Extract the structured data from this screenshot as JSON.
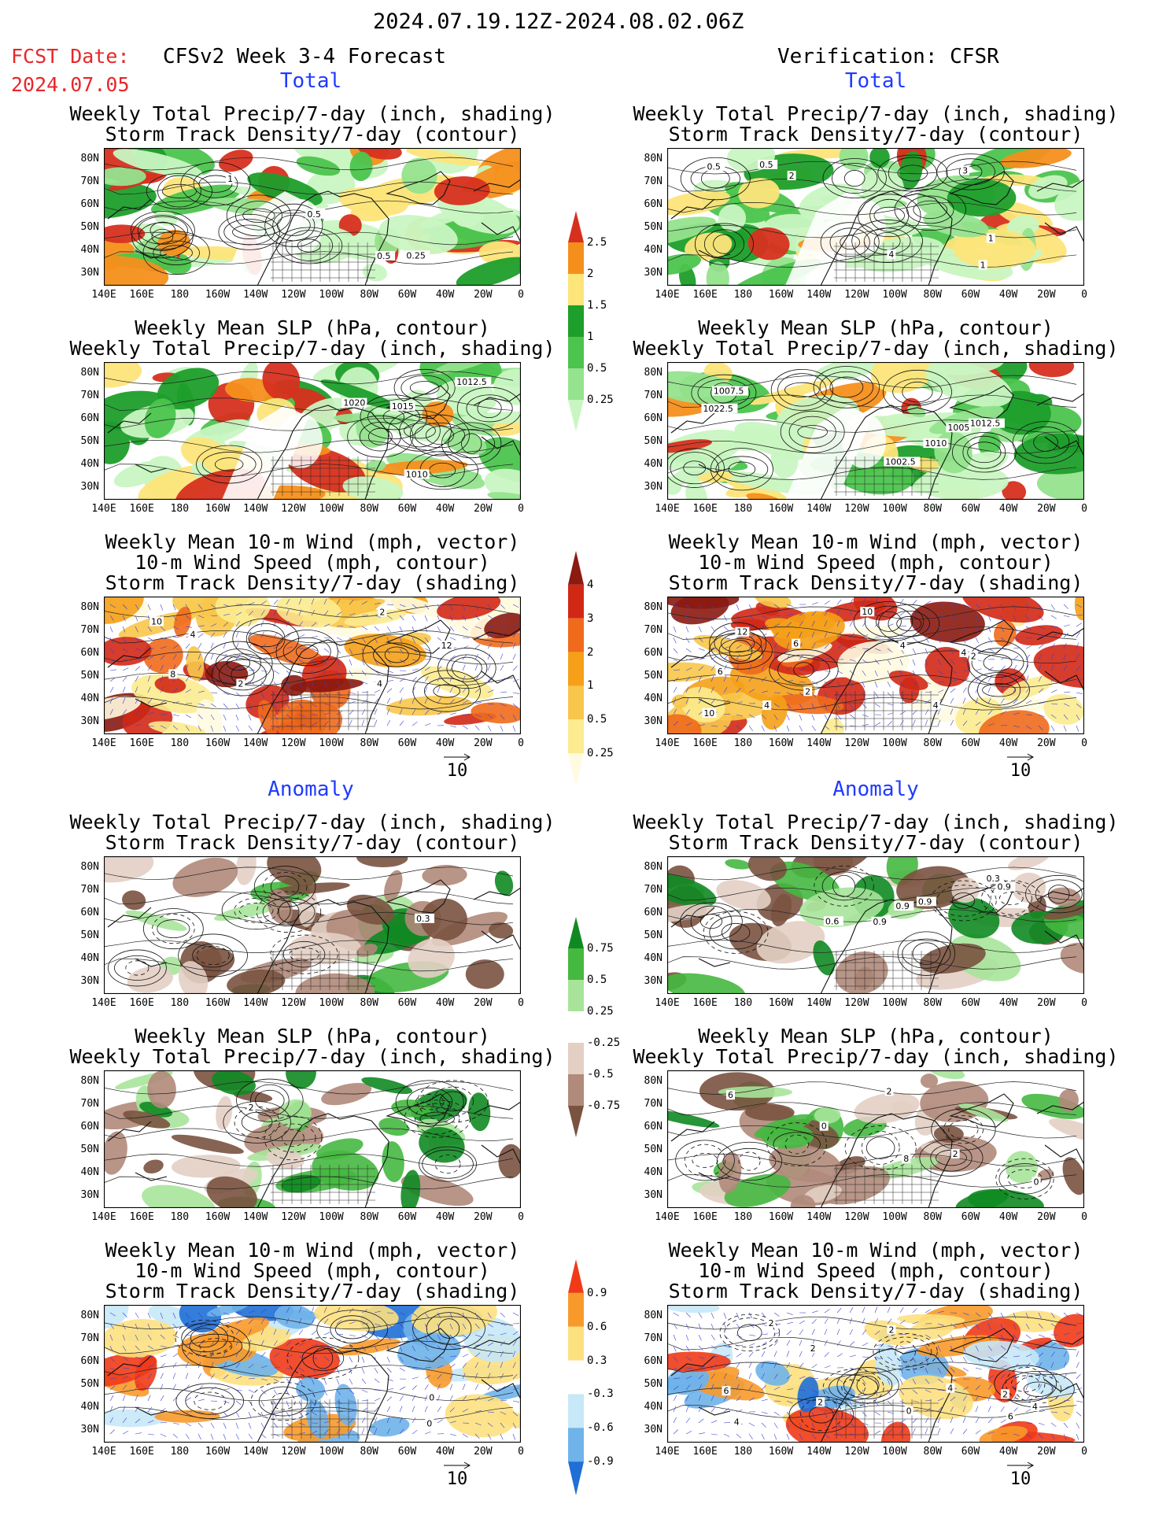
{
  "header": {
    "period": "2024.07.19.12Z-2024.08.02.06Z",
    "fcst_label": "FCST Date:",
    "fcst_date": "2024.07.05",
    "model_title": "CFSv2 Week 3-4 Forecast",
    "verification_title": "Verification: CFSR"
  },
  "sections": {
    "total": "Total",
    "anomaly": "Anomaly"
  },
  "titles": {
    "precip_storm": [
      "Weekly Total Precip/7-day (inch, shading)",
      "Storm Track Density/7-day (contour)"
    ],
    "slp_precip": [
      "Weekly Mean SLP (hPa, contour)",
      "Weekly Total Precip/7-day (inch, shading)"
    ],
    "wind_storm": [
      "Weekly Mean 10-m Wind (mph, vector)",
      "10-m Wind Speed (mph, contour)",
      "Storm Track Density/7-day (shading)"
    ]
  },
  "axes": {
    "lat_labels": [
      "80N",
      "70N",
      "60N",
      "50N",
      "40N",
      "30N"
    ],
    "lon_labels": [
      "140E",
      "160E",
      "180",
      "160W",
      "140W",
      "120W",
      "100W",
      "80W",
      "60W",
      "40W",
      "20W",
      "0"
    ]
  },
  "reference_vector": "10",
  "colorbars": {
    "precip_total": {
      "labels": [
        "2.5",
        "2",
        "1.5",
        "1",
        "0.5",
        "0.25"
      ],
      "colors": [
        "#d7301f",
        "#f58f1c",
        "#fde57a",
        "#1e9e2b",
        "#4cc44e",
        "#95e38e",
        "#c9f5c2"
      ]
    },
    "storm_total": {
      "labels": [
        "4",
        "3",
        "2",
        "1",
        "0.5",
        "0.25"
      ],
      "colors": [
        "#8b1a10",
        "#d12816",
        "#f06a1c",
        "#f5a018",
        "#f8c64a",
        "#fceb8f",
        "#fffbe0"
      ]
    },
    "precip_anom": {
      "labels": [
        "0.75",
        "0.5",
        "0.25",
        "-0.25",
        "-0.5",
        "-0.75"
      ],
      "colors": [
        "#0f8a22",
        "#45b840",
        "#a7e49a",
        "#ffffff",
        "#e3cfc4",
        "#b08a7a",
        "#7a5240"
      ]
    },
    "storm_anom": {
      "labels": [
        "0.9",
        "0.6",
        "0.3",
        "-0.3",
        "-0.6",
        "-0.9"
      ],
      "colors": [
        "#f03a18",
        "#f89a2a",
        "#fde080",
        "#ffffff",
        "#c7e8f7",
        "#6fb3ea",
        "#1f6fd6"
      ]
    }
  },
  "contour_labels": {
    "fc_precip_total": [
      "1",
      "0.5",
      "0.25",
      "0.5"
    ],
    "vf_precip_total": [
      "0.5",
      "1",
      "3",
      "4",
      "2",
      "1",
      "0.5"
    ],
    "fc_slp_total": [
      "1010",
      "1012.5",
      "1015",
      "1020"
    ],
    "vf_slp_total": [
      "1002.5",
      "1007.5",
      "1005",
      "1010",
      "1012.5",
      "1022.5"
    ],
    "fc_wind_total": [
      "2",
      "4",
      "4",
      "2",
      "10",
      "8",
      "12"
    ],
    "vf_wind_total": [
      "6",
      "6",
      "4",
      "4",
      "2",
      "4",
      "2",
      "12",
      "4",
      "10",
      "10"
    ],
    "fc_precip_anom": [
      "0.3"
    ],
    "vf_precip_anom": [
      "0.9",
      "0.9",
      "0.9",
      "0.9",
      "0.3",
      "0.6"
    ],
    "fc_slp_anom": [
      "2"
    ],
    "vf_slp_anom": [
      "6",
      "2",
      "8",
      "0",
      "0",
      "2"
    ],
    "fc_wind_anom": [
      "0",
      "0"
    ],
    "vf_wind_anom": [
      "0",
      "4",
      "2",
      "6",
      "2",
      "4",
      "2",
      "6",
      "4",
      "2",
      "2"
    ]
  }
}
